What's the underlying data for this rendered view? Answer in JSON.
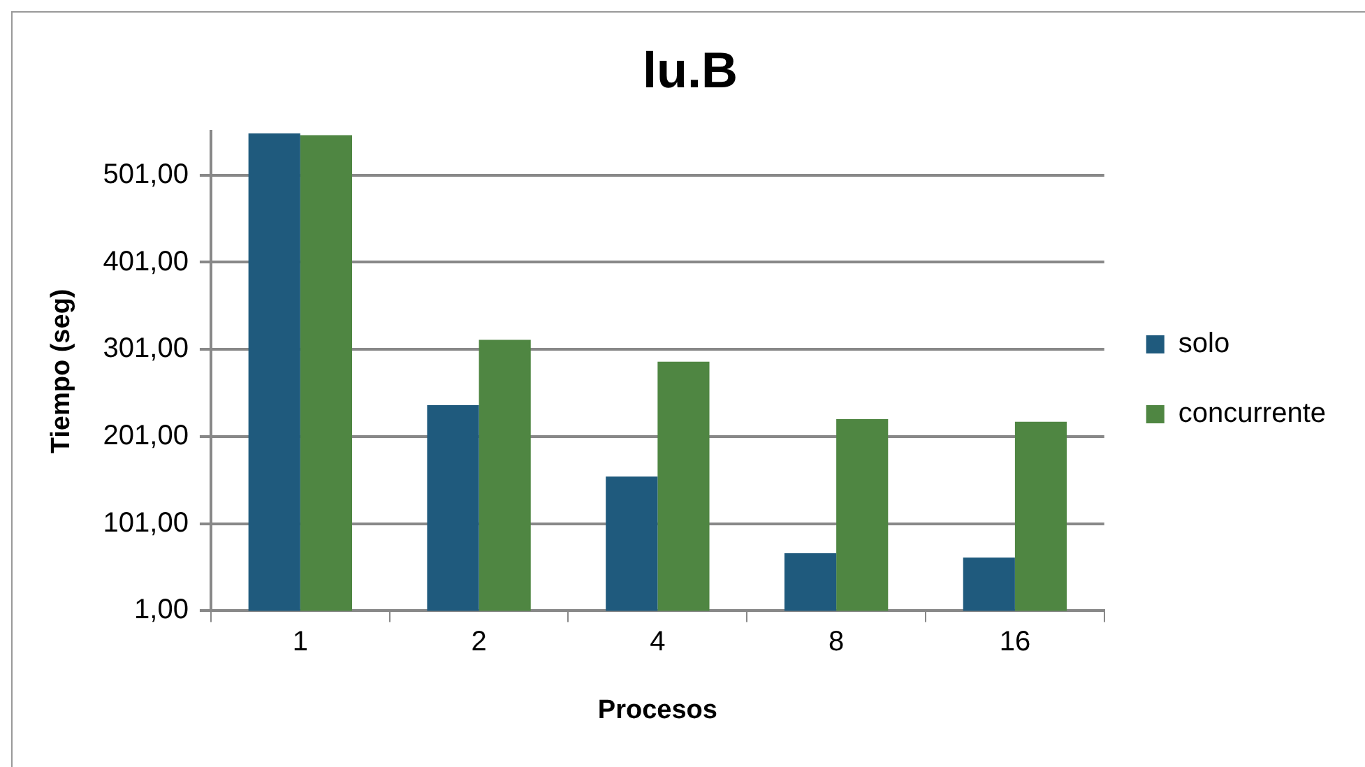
{
  "chart_data": {
    "type": "bar",
    "title": "lu.B",
    "xlabel": "Procesos",
    "ylabel": "Tiempo (seg)",
    "categories": [
      "1",
      "2",
      "4",
      "8",
      "16"
    ],
    "series": [
      {
        "name": "solo",
        "color": "#1f5a7d",
        "values": [
          549,
          237,
          155,
          67,
          62
        ]
      },
      {
        "name": "concurrente",
        "color": "#4f8642",
        "values": [
          547,
          312,
          287,
          221,
          218
        ]
      }
    ],
    "ylim": [
      1,
      551
    ],
    "yticks": [
      {
        "value": 1,
        "label": "1,00"
      },
      {
        "value": 101,
        "label": "101,00"
      },
      {
        "value": 201,
        "label": "201,00"
      },
      {
        "value": 301,
        "label": "301,00"
      },
      {
        "value": 401,
        "label": "401,00"
      },
      {
        "value": 501,
        "label": "501,00"
      }
    ],
    "grid": "y",
    "legend": "right"
  }
}
